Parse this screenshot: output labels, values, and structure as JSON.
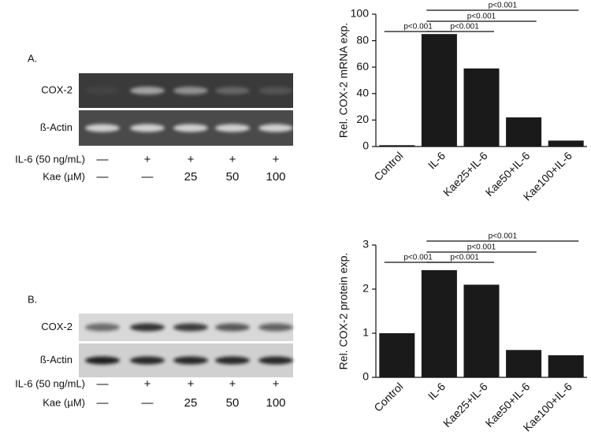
{
  "gels": [
    {
      "label": "A.",
      "blots": [
        "COX-2",
        "ß-Actin"
      ],
      "treatments": [
        {
          "name": "IL-6 (50 ng/mL)",
          "lanes": [
            "—",
            "+",
            "+",
            "+",
            "+"
          ]
        },
        {
          "name": "Kae (µM)",
          "lanes": [
            "—",
            "—",
            "25",
            "50",
            "100"
          ]
        }
      ]
    },
    {
      "label": "B.",
      "blots": [
        "COX-2",
        "ß-Actin"
      ],
      "treatments": [
        {
          "name": "IL-6 (50 ng/mL)",
          "lanes": [
            "—",
            "+",
            "+",
            "+",
            "+"
          ]
        },
        {
          "name": "Kae (µM)",
          "lanes": [
            "—",
            "—",
            "25",
            "50",
            "100"
          ]
        }
      ]
    }
  ],
  "chart_data": [
    {
      "type": "bar",
      "ylabel": "Rel. COX-2 mRNA exp.",
      "categories": [
        "Control",
        "IL-6",
        "Kae25+IL-6",
        "Kae50+IL-6",
        "Kae100+IL-6"
      ],
      "values": [
        1,
        85,
        59,
        22,
        4.5
      ],
      "color": "#1a1a1a",
      "ylim": [
        0,
        100
      ],
      "yticks": [
        0,
        20,
        40,
        60,
        80,
        100
      ],
      "annotations": [
        "p<0.001",
        "p<0.001",
        "p<0.001",
        "p<0.001"
      ]
    },
    {
      "type": "bar",
      "ylabel": "Rel. COX-2 protein exp.",
      "categories": [
        "Control",
        "IL-6",
        "Kae25+IL-6",
        "Kae50+IL-6",
        "Kae100+IL-6"
      ],
      "values": [
        1,
        2.43,
        2.1,
        0.62,
        0.5
      ],
      "color": "#1a1a1a",
      "ylim": [
        0,
        3
      ],
      "yticks": [
        0,
        1,
        2,
        3
      ],
      "annotations": [
        "p<0.001",
        "p<0.001",
        "p<0.001",
        "p<0.001"
      ]
    }
  ]
}
